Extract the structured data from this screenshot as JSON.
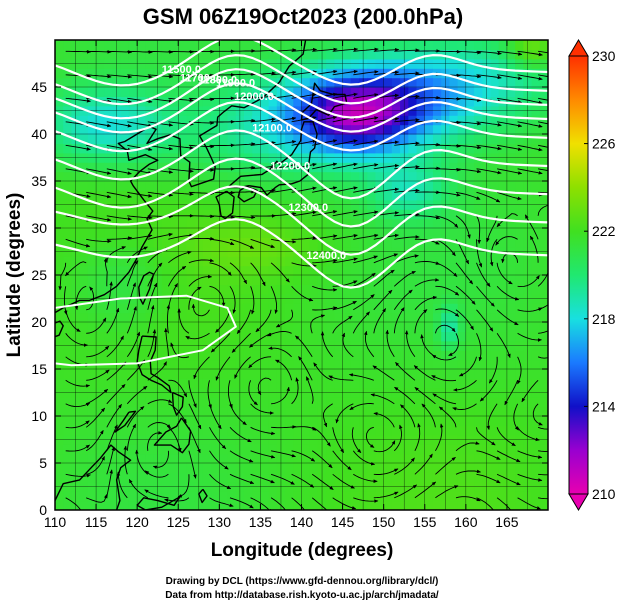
{
  "chart_data": {
    "type": "heatmap",
    "title": "GSM 06Z19Oct2023 (200.0hPa)",
    "xlabel": "Longitude (degrees)",
    "ylabel": "Latitude  (degrees)",
    "xlim": [
      110,
      170
    ],
    "ylim": [
      0,
      50
    ],
    "x_ticks": [
      "110",
      "115",
      "120",
      "125",
      "130",
      "135",
      "140",
      "145",
      "150",
      "155",
      "160",
      "165"
    ],
    "y_ticks": [
      "0",
      "5",
      "10",
      "15",
      "20",
      "25",
      "30",
      "35",
      "40",
      "45"
    ],
    "grid": true,
    "colorbar": {
      "position": "right",
      "range": [
        210,
        230
      ],
      "ticks": [
        "210",
        "214",
        "218",
        "222",
        "226",
        "230"
      ],
      "colors": [
        "#e800b0",
        "#9900d0",
        "#1010c8",
        "#1a7aff",
        "#18e0e0",
        "#20e870",
        "#40e020",
        "#8ee000",
        "#f0e000",
        "#ff8a00",
        "#ff3000"
      ]
    },
    "height_contours": [
      {
        "label": "11500.0",
        "value": 11500
      },
      {
        "label": "11700.0",
        "value": 11700
      },
      {
        "label": "11800.0",
        "value": 11800
      },
      {
        "label": "11900.0",
        "value": 11900
      },
      {
        "label": "12000.0",
        "value": 12000
      },
      {
        "label": "12100.0",
        "value": 12100
      },
      {
        "label": "12200.0",
        "value": 12200
      },
      {
        "label": "12300.0",
        "value": 12300
      },
      {
        "label": "12400.0",
        "value": 12400
      }
    ]
  },
  "credits": {
    "line1": "Drawing by DCL (https://www.gfd-dennou.org/library/dcl/)",
    "line2": "Data from http://database.rish.kyoto-u.ac.jp/arch/jmadata/"
  },
  "colors": {
    "background": "#ffffff",
    "contour": "#ffffff",
    "streamline": "#000000",
    "coastline": "#000000"
  }
}
